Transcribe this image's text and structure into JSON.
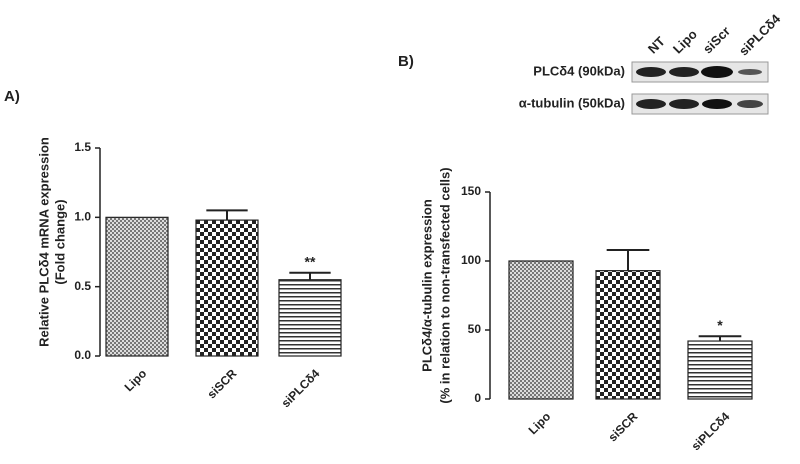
{
  "chart_data": [
    {
      "type": "bar",
      "panel_label": "A)",
      "y_label": [
        "Relative PLCδ4 mRNA expression",
        "(Fold change)"
      ],
      "categories": [
        "Lipo",
        "siSCR",
        "siPLCδ4"
      ],
      "values": [
        1.0,
        0.98,
        0.55
      ],
      "errors": [
        null,
        0.07,
        0.05
      ],
      "significance": [
        null,
        null,
        "**"
      ],
      "ylim": [
        0,
        1.5
      ],
      "yticks": [
        {
          "value": 0,
          "label": "0.0"
        },
        0.5,
        {
          "value": 1,
          "label": "1.0"
        },
        1.5
      ]
    },
    {
      "type": "bar",
      "panel_label": "B)",
      "y_label": [
        "PLCδ4/α-tubulin expression",
        "(% in relation to non-transfected cells)"
      ],
      "categories": [
        "Lipo",
        "siSCR",
        "siPLCδ4"
      ],
      "values": [
        100,
        93,
        42
      ],
      "errors": [
        null,
        15,
        3.5
      ],
      "significance": [
        null,
        null,
        "*"
      ],
      "ylim": [
        0,
        150
      ],
      "yticks": [
        0,
        50,
        100,
        150
      ]
    }
  ],
  "blot": {
    "lanes": [
      "NT",
      "Lipo",
      "siScr",
      "siPLCδ4"
    ],
    "rows": [
      "PLCδ4 (90kDa)",
      "α-tubulin (50kDa)"
    ]
  }
}
